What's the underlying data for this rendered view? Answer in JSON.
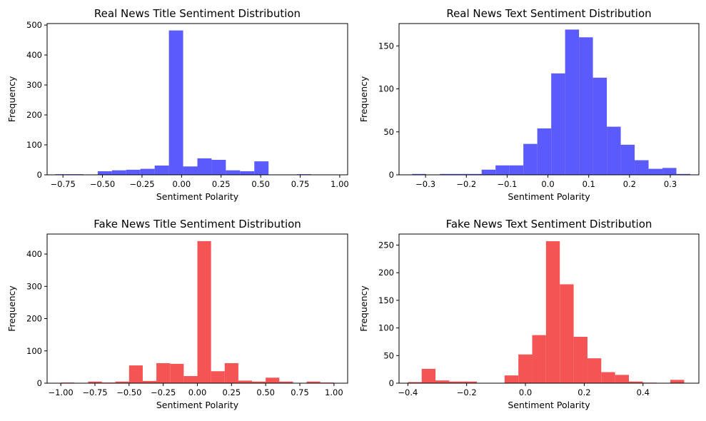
{
  "figure": {
    "background": "#ffffff",
    "axis_color": "#000000"
  },
  "chart_data": [
    {
      "type": "bar",
      "title": "Real News Title Sentiment Distribution",
      "xlabel": "Sentiment Polarity",
      "ylabel": "Frequency",
      "color": "#5b5bfd",
      "xlim": [
        -0.85,
        1.05
      ],
      "ylim": [
        0,
        505
      ],
      "xticks": [
        -0.75,
        -0.5,
        -0.25,
        0.0,
        0.25,
        0.5,
        0.75,
        1.0
      ],
      "xtick_labels": [
        "−0.75",
        "−0.50",
        "−0.25",
        "0.00",
        "0.25",
        "0.50",
        "0.75",
        "1.00"
      ],
      "yticks": [
        0,
        100,
        200,
        300,
        400,
        500
      ],
      "ytick_labels": [
        "0",
        "100",
        "200",
        "300",
        "400",
        "500"
      ],
      "bin_edges": [
        -0.8,
        -0.71,
        -0.62,
        -0.53,
        -0.44,
        -0.35,
        -0.26,
        -0.17,
        -0.08,
        0.01,
        0.1,
        0.19,
        0.28,
        0.37,
        0.46,
        0.55,
        0.64,
        0.73,
        0.82,
        0.91,
        1.0
      ],
      "values": [
        2,
        2,
        0,
        12,
        15,
        17,
        20,
        31,
        482,
        28,
        55,
        50,
        15,
        12,
        45,
        0,
        0,
        2,
        0,
        0
      ]
    },
    {
      "type": "bar",
      "title": "Real News Text Sentiment Distribution",
      "xlabel": "Sentiment Polarity",
      "ylabel": "Frequency",
      "color": "#5b5bfd",
      "xlim": [
        -0.365,
        0.37
      ],
      "ylim": [
        0,
        176
      ],
      "xticks": [
        -0.3,
        -0.2,
        -0.1,
        0.0,
        0.1,
        0.2,
        0.3
      ],
      "xtick_labels": [
        "−0.3",
        "−0.2",
        "−0.1",
        "0.0",
        "0.1",
        "0.2",
        "0.3"
      ],
      "yticks": [
        0,
        50,
        100,
        150
      ],
      "ytick_labels": [
        "0",
        "50",
        "100",
        "150"
      ],
      "bin_edges": [
        -0.333,
        -0.2989,
        -0.2648,
        -0.2307,
        -0.1966,
        -0.1625,
        -0.1284,
        -0.0943,
        -0.0602,
        -0.0261,
        0.008,
        0.0421,
        0.0762,
        0.1103,
        0.1444,
        0.1785,
        0.2126,
        0.2467,
        0.2808,
        0.3149,
        0.349
      ],
      "values": [
        1,
        0,
        1,
        1,
        1,
        6,
        11,
        11,
        36,
        54,
        118,
        169,
        160,
        113,
        56,
        35,
        17,
        7,
        8,
        1
      ]
    },
    {
      "type": "bar",
      "title": "Fake News Title Sentiment Distribution",
      "xlabel": "Sentiment Polarity",
      "ylabel": "Frequency",
      "color": "#f45454",
      "xlim": [
        -1.1,
        1.1
      ],
      "ylim": [
        0,
        462
      ],
      "xticks": [
        -1.0,
        -0.75,
        -0.5,
        -0.25,
        0.0,
        0.25,
        0.5,
        0.75,
        1.0
      ],
      "xtick_labels": [
        "−1.00",
        "−0.75",
        "−0.50",
        "−0.25",
        "0.00",
        "0.25",
        "0.50",
        "0.75",
        "1.00"
      ],
      "yticks": [
        0,
        100,
        200,
        300,
        400
      ],
      "ytick_labels": [
        "0",
        "100",
        "200",
        "300",
        "400"
      ],
      "bin_edges": [
        -1.0,
        -0.9,
        -0.8,
        -0.7,
        -0.6,
        -0.5,
        -0.4,
        -0.3,
        -0.2,
        -0.1,
        0.0,
        0.1,
        0.2,
        0.3,
        0.4,
        0.5,
        0.6,
        0.7,
        0.8,
        0.9,
        1.0
      ],
      "values": [
        2,
        0,
        5,
        2,
        5,
        55,
        7,
        62,
        60,
        22,
        440,
        37,
        62,
        8,
        5,
        17,
        5,
        0,
        5,
        2
      ]
    },
    {
      "type": "bar",
      "title": "Fake News Text Sentiment Distribution",
      "xlabel": "Sentiment Polarity",
      "ylabel": "Frequency",
      "color": "#f45454",
      "xlim": [
        -0.43,
        0.59
      ],
      "ylim": [
        0,
        270
      ],
      "xticks": [
        -0.4,
        -0.2,
        0.0,
        0.2,
        0.4
      ],
      "xtick_labels": [
        "−0.4",
        "−0.2",
        "0.0",
        "0.2",
        "0.4"
      ],
      "yticks": [
        0,
        50,
        100,
        150,
        200,
        250
      ],
      "ytick_labels": [
        "0",
        "50",
        "100",
        "150",
        "200",
        "250"
      ],
      "bin_edges": [
        -0.4,
        -0.353,
        -0.306,
        -0.259,
        -0.212,
        -0.165,
        -0.118,
        -0.071,
        -0.024,
        0.023,
        0.07,
        0.117,
        0.164,
        0.211,
        0.258,
        0.305,
        0.352,
        0.399,
        0.446,
        0.493,
        0.54
      ],
      "values": [
        2,
        26,
        5,
        3,
        3,
        0,
        0,
        14,
        52,
        87,
        257,
        179,
        84,
        45,
        20,
        15,
        3,
        1,
        0,
        6
      ]
    }
  ]
}
